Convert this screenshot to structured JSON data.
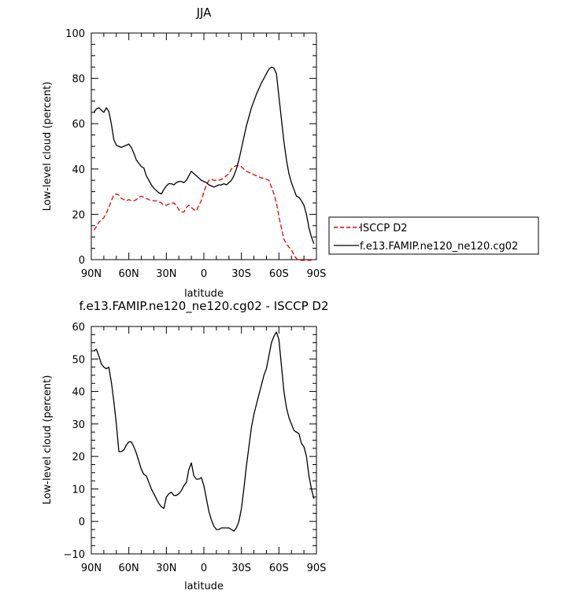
{
  "chart_data": [
    {
      "type": "line",
      "title": "JJA",
      "xlabel": "latitude",
      "ylabel": "Low-level cloud (percent)",
      "x_ticks": [
        "90N",
        "60N",
        "30N",
        "0",
        "30S",
        "60S",
        "90S"
      ],
      "xlim": [
        90,
        -90
      ],
      "ylim": [
        0,
        100
      ],
      "y_ticks": [
        0,
        20,
        40,
        60,
        80,
        100
      ],
      "legend_position": "right",
      "series": [
        {
          "name": "ISCCP D2",
          "color": "#e60000",
          "dash": "dashed",
          "x": [
            88,
            86,
            84,
            82,
            80,
            78,
            76,
            74,
            72,
            70,
            68,
            66,
            64,
            62,
            60,
            58,
            56,
            54,
            52,
            50,
            48,
            46,
            44,
            42,
            40,
            38,
            36,
            34,
            32,
            30,
            28,
            26,
            24,
            22,
            20,
            18,
            16,
            14,
            12,
            10,
            8,
            6,
            4,
            2,
            0,
            -2,
            -4,
            -6,
            -8,
            -10,
            -12,
            -14,
            -16,
            -18,
            -20,
            -22,
            -24,
            -26,
            -28,
            -30,
            -32,
            -34,
            -36,
            -38,
            -40,
            -42,
            -44,
            -46,
            -48,
            -50,
            -52,
            -54,
            -56,
            -58,
            -60,
            -62,
            -64,
            -66,
            -68,
            -70,
            -72,
            -74,
            -76,
            -78,
            -80,
            -82,
            -84,
            -86
          ],
          "values": [
            13,
            14.5,
            16.5,
            17.5,
            18.5,
            20.5,
            23,
            26,
            28.5,
            29,
            28.5,
            27,
            26.5,
            26,
            26.5,
            26,
            26,
            26.5,
            27.5,
            28,
            27.5,
            27,
            26.5,
            26,
            26,
            26,
            25.5,
            25,
            24,
            24,
            24.5,
            25,
            25,
            24,
            22,
            21,
            21,
            23,
            24,
            23,
            22,
            21.5,
            24,
            26,
            30,
            33,
            35,
            35.5,
            35,
            35,
            35,
            35.5,
            36,
            37,
            38,
            40,
            41,
            41.5,
            41.5,
            41,
            40,
            39,
            38.5,
            38,
            37.5,
            37,
            36.5,
            36,
            36,
            35.5,
            35,
            32,
            29,
            25,
            19,
            14,
            9,
            7,
            5.5,
            4.5,
            2,
            0.5,
            -0.3,
            -0.3,
            -0.3,
            -0.3,
            -0.3,
            -0.3
          ]
        },
        {
          "name": "f.e13.FAMIP.ne120_ne120.cg02",
          "color": "#000000",
          "dash": "solid",
          "x": [
            88,
            86,
            84,
            82,
            80,
            78,
            76,
            74,
            72,
            70,
            68,
            66,
            64,
            62,
            60,
            58,
            56,
            54,
            52,
            50,
            48,
            46,
            44,
            42,
            40,
            38,
            36,
            34,
            32,
            30,
            28,
            26,
            24,
            22,
            20,
            18,
            16,
            14,
            12,
            10,
            8,
            6,
            4,
            2,
            0,
            -2,
            -4,
            -6,
            -8,
            -10,
            -12,
            -14,
            -16,
            -18,
            -20,
            -22,
            -24,
            -26,
            -28,
            -30,
            -32,
            -34,
            -36,
            -38,
            -40,
            -42,
            -44,
            -46,
            -48,
            -50,
            -52,
            -54,
            -56,
            -58,
            -60,
            -62,
            -64,
            -66,
            -68,
            -70,
            -72,
            -74,
            -76,
            -78,
            -80,
            -82,
            -84,
            -86,
            -88
          ],
          "values": [
            65,
            66.5,
            67,
            66,
            65,
            67,
            65.5,
            60,
            53,
            50.5,
            50,
            49.5,
            50,
            50.5,
            51,
            49.5,
            47,
            44,
            42.5,
            41,
            40.5,
            37,
            35,
            33,
            31.5,
            30.5,
            29.5,
            29,
            31,
            32.5,
            33.5,
            33.5,
            33,
            34,
            34.5,
            34.5,
            34,
            35,
            37,
            39,
            38,
            37,
            36,
            35,
            34.5,
            34,
            33,
            32.5,
            32,
            32.5,
            33,
            33,
            33.5,
            33,
            34,
            35,
            37,
            40,
            44,
            49,
            54,
            59,
            63,
            67,
            70,
            73,
            75.5,
            78,
            80,
            82,
            84,
            85,
            84.5,
            82,
            72,
            62,
            52,
            44,
            38,
            34,
            31,
            28,
            27.5,
            26,
            24,
            20,
            14,
            10,
            7
          ]
        }
      ]
    },
    {
      "type": "line",
      "title": "f.e13.FAMIP.ne120_ne120.cg02 - ISCCP D2",
      "xlabel": "latitude",
      "ylabel": "Low-level cloud (percent)",
      "x_ticks": [
        "90N",
        "60N",
        "30N",
        "0",
        "30S",
        "60S",
        "90S"
      ],
      "xlim": [
        90,
        -90
      ],
      "ylim": [
        -10,
        60
      ],
      "y_ticks": [
        -10,
        0,
        10,
        20,
        30,
        40,
        50,
        60
      ],
      "series": [
        {
          "color": "#000000",
          "dash": "solid",
          "x": [
            88,
            86,
            84,
            82,
            80,
            78,
            76,
            74,
            72,
            70,
            68,
            66,
            64,
            62,
            60,
            58,
            56,
            54,
            52,
            50,
            48,
            46,
            44,
            42,
            40,
            38,
            36,
            34,
            32,
            30,
            28,
            26,
            24,
            22,
            20,
            18,
            16,
            14,
            12,
            10,
            8,
            6,
            4,
            2,
            0,
            -2,
            -4,
            -6,
            -8,
            -10,
            -12,
            -14,
            -16,
            -18,
            -20,
            -22,
            -24,
            -26,
            -28,
            -30,
            -32,
            -34,
            -36,
            -38,
            -40,
            -42,
            -44,
            -46,
            -48,
            -50,
            -52,
            -54,
            -56,
            -58,
            -60,
            -62,
            -64,
            -66,
            -68,
            -70,
            -72,
            -74,
            -76,
            -78,
            -80,
            -82,
            -84,
            -86,
            -88
          ],
          "values": [
            52.5,
            53,
            51,
            48.5,
            47.5,
            47,
            47.5,
            43,
            37,
            30,
            21.5,
            21.5,
            22,
            23.5,
            24.5,
            24.5,
            23,
            21,
            18.5,
            16,
            14.5,
            14,
            12,
            10,
            8.5,
            7,
            5.5,
            4.5,
            4,
            7.5,
            8.5,
            9,
            8,
            8,
            8.5,
            9.5,
            11,
            12,
            16,
            18,
            14,
            13,
            13,
            13.5,
            11,
            7,
            3,
            0.5,
            -1.5,
            -2.5,
            -2.5,
            -2,
            -2,
            -2,
            -2,
            -2.5,
            -3,
            -2,
            0,
            4,
            10,
            17,
            23,
            29,
            33,
            36,
            39,
            42,
            45,
            47,
            51,
            55,
            57,
            58.3,
            56,
            48,
            40,
            35,
            32,
            30,
            28,
            27.5,
            27,
            24,
            23,
            20,
            14,
            10,
            7
          ]
        }
      ]
    }
  ]
}
